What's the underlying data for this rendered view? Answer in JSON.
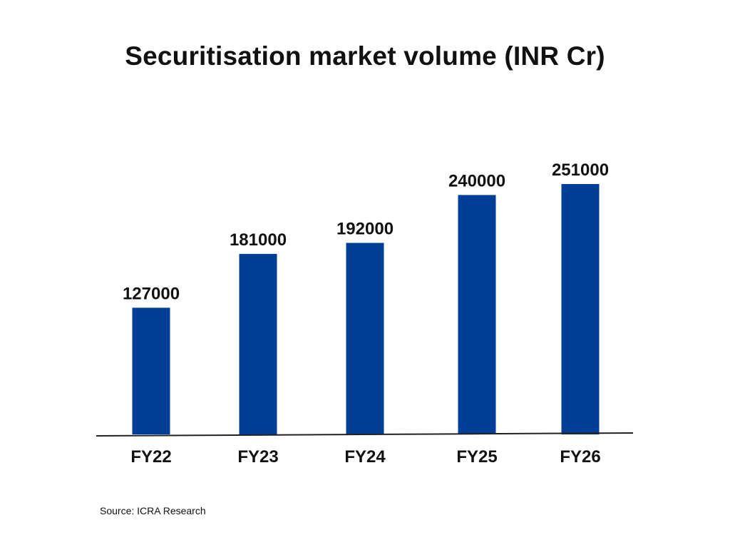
{
  "chart_data": {
    "type": "bar",
    "title": "Securitisation market volume (INR Cr)",
    "categories": [
      "FY22",
      "FY23",
      "FY24",
      "FY25",
      "FY26"
    ],
    "values": [
      127000,
      181000,
      192000,
      240000,
      251000
    ],
    "data_labels": [
      "127000",
      "181000",
      "192000",
      "240000",
      "251000"
    ],
    "xlabel": "",
    "ylabel": "",
    "ylim": [
      0,
      251000
    ],
    "grid": false,
    "legend": "none",
    "bar_color": "#003f98",
    "axis_color": "#222222"
  },
  "footer": {
    "source": "Source: ICRA Research"
  }
}
